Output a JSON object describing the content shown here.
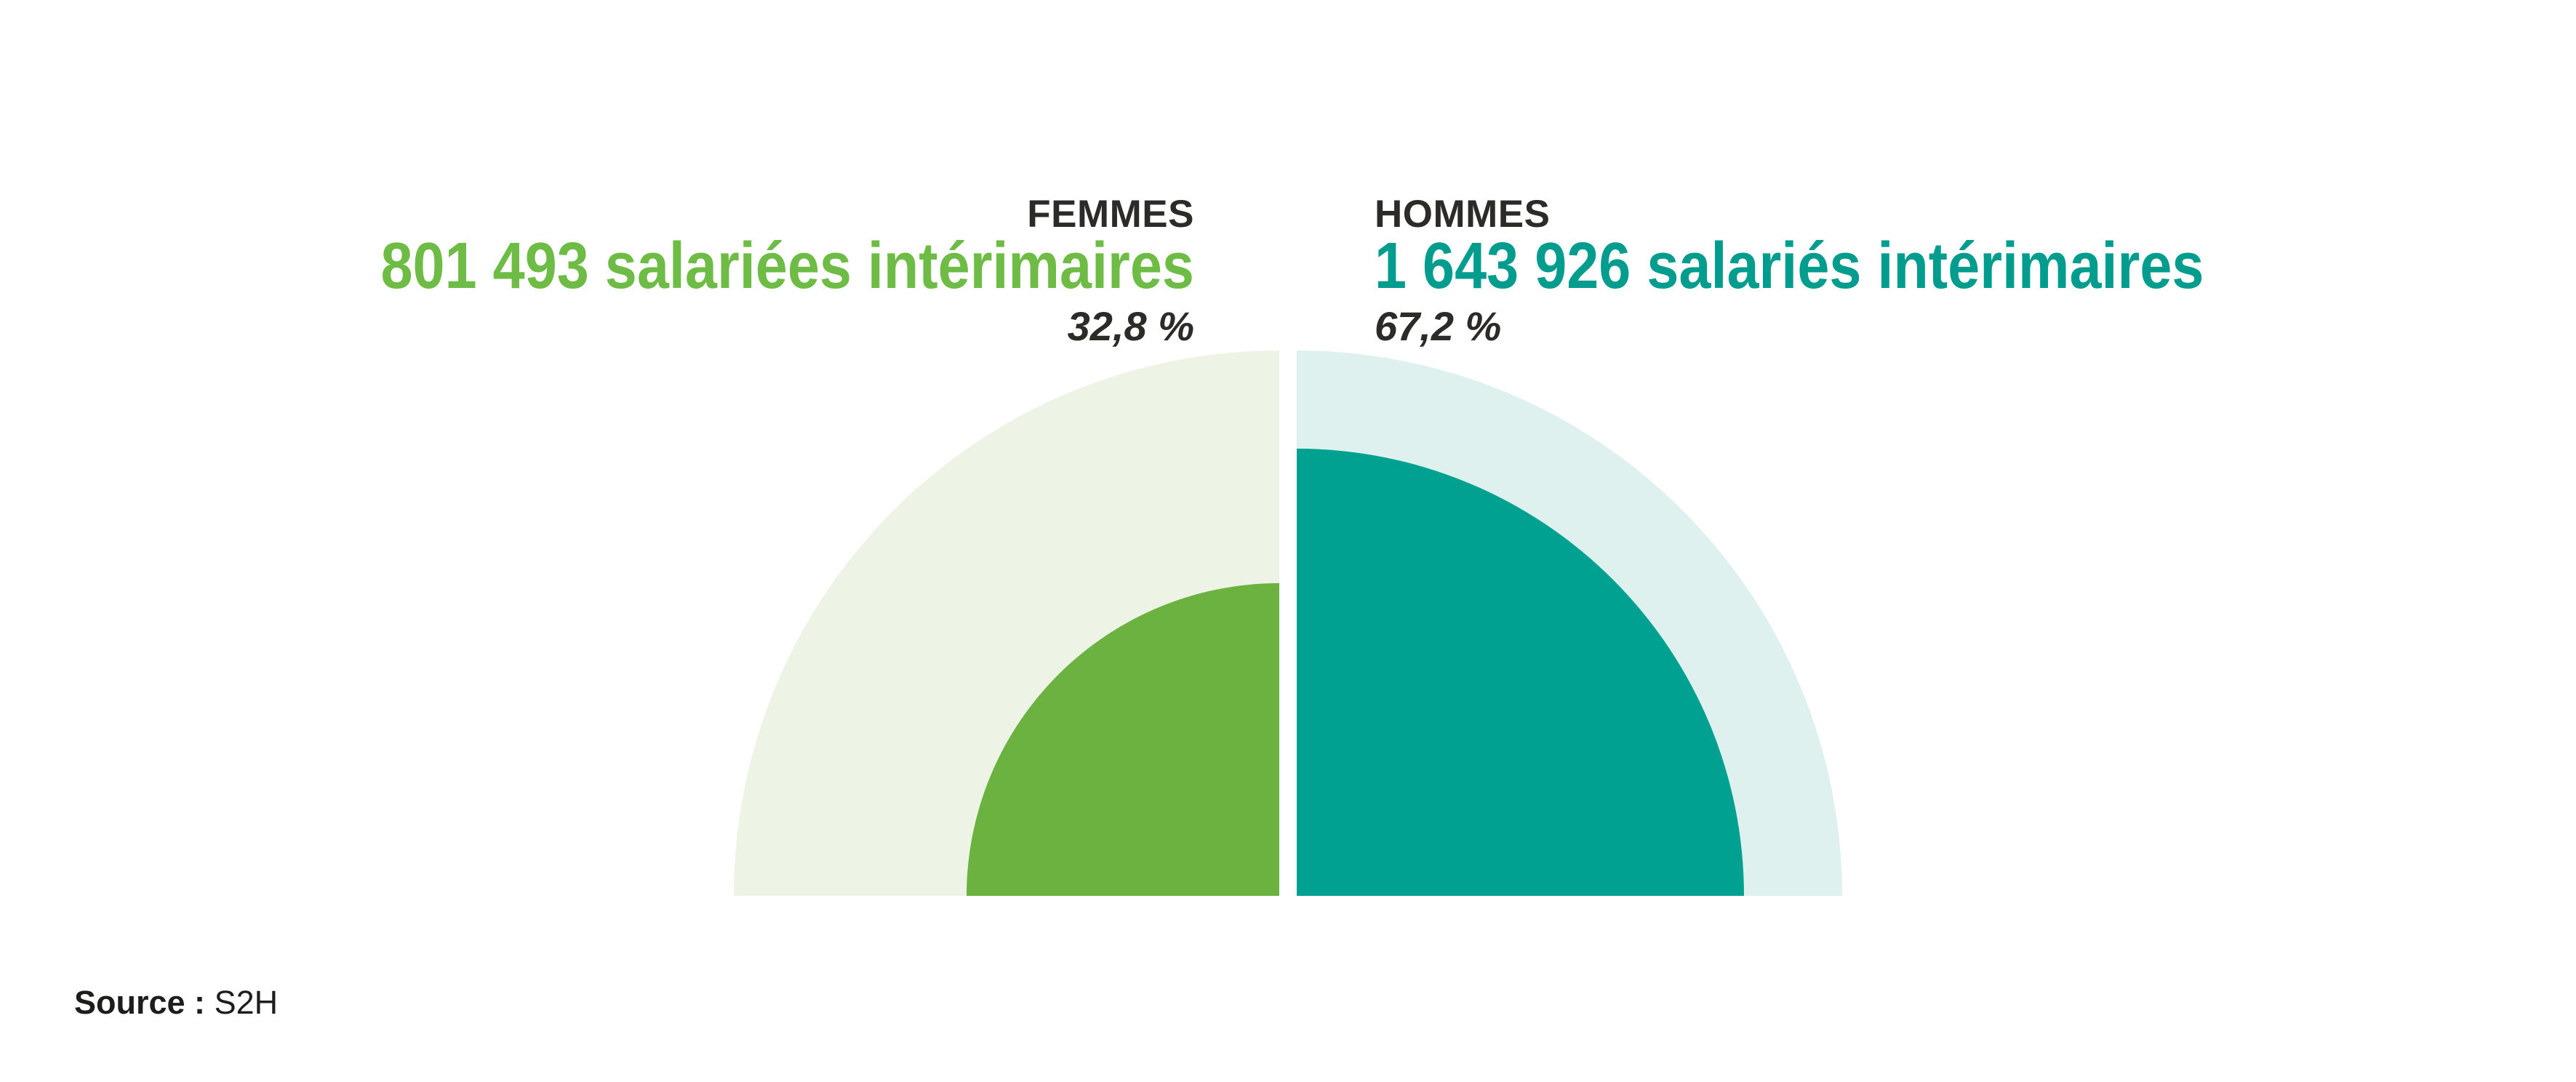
{
  "chart_data": {
    "type": "pie",
    "variant": "split-half-donut: two mirrored quarter-circle gauges on a shared baseline, radius proportional to sqrt(share)",
    "title": "",
    "categories": [
      "FEMMES",
      "HOMMES"
    ],
    "series": [
      {
        "name": "Salariés intérimaires",
        "values": [
          801493,
          1643926
        ]
      }
    ],
    "percents": [
      32.8,
      67.2
    ],
    "data_labels": [
      "801 493 salariées intérimaires",
      "1 643 926 salariés intérimaires"
    ],
    "percent_labels": [
      "32,8 %",
      "67,2 %"
    ],
    "legend_position": "above chart, split left/right",
    "grid": false
  },
  "femmes": {
    "label": "FEMMES",
    "headline": "801 493 salariées intérimaires",
    "percent_label": "32,8 %",
    "percent_value": 32.8,
    "count": 801493,
    "color": "#6cb240",
    "text_color": "#6ebc45",
    "track_color": "#edf3e5"
  },
  "hommes": {
    "label": "HOMMES",
    "headline": "1 643 926 salariés intérimaires",
    "percent_label": "67,2 %",
    "percent_value": 67.2,
    "count": 1643926,
    "color": "#00a191",
    "text_color": "#009c8e",
    "track_color": "#def1ee"
  },
  "source": {
    "label": "Source :",
    "value": "S2H"
  },
  "colors": {
    "background": "#ffffff",
    "heading_text": "#2d2b28",
    "source_text": "#1d1d1b",
    "femmes_green": "#6cb240",
    "femmes_light_green": "#edf3e5",
    "hommes_teal": "#00a191",
    "hommes_light_teal": "#def1ee"
  }
}
